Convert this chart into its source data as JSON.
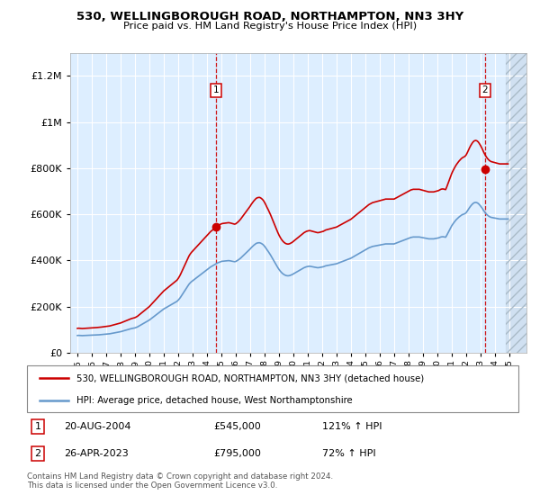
{
  "title": "530, WELLINGBOROUGH ROAD, NORTHAMPTON, NN3 3HY",
  "subtitle": "Price paid vs. HM Land Registry's House Price Index (HPI)",
  "legend_line1": "530, WELLINGBOROUGH ROAD, NORTHAMPTON, NN3 3HY (detached house)",
  "legend_line2": "HPI: Average price, detached house, West Northamptonshire",
  "footnote": "Contains HM Land Registry data © Crown copyright and database right 2024.\nThis data is licensed under the Open Government Licence v3.0.",
  "sale1_date": "20-AUG-2004",
  "sale1_price": "£545,000",
  "sale1_hpi": "121% ↑ HPI",
  "sale2_date": "26-APR-2023",
  "sale2_price": "£795,000",
  "sale2_hpi": "72% ↑ HPI",
  "hpi_color": "#6699cc",
  "price_color": "#cc0000",
  "bg_color": "#ddeeff",
  "ylim": [
    0,
    1300000
  ],
  "yticks": [
    0,
    200000,
    400000,
    600000,
    800000,
    1000000,
    1200000
  ],
  "sale1_x": 2004.639,
  "sale2_x": 2023.32,
  "sale1_y": 545000,
  "sale2_y": 795000,
  "xmin": 1994.5,
  "xmax": 2026.2,
  "hatch_start": 2024.75
}
